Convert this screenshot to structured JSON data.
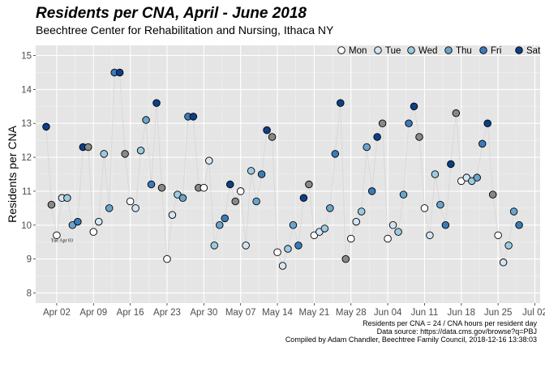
{
  "chart_data": {
    "type": "scatter",
    "title": "Residents per CNA, April - June 2018",
    "subtitle": "Beechtree Center for Rehabilitation and Nursing, Ithaca NY",
    "ylabel": "Residents per CNA",
    "xlabel": "",
    "ylim": [
      7.7,
      15.3
    ],
    "yticks": [
      8,
      9,
      10,
      11,
      12,
      13,
      14,
      15
    ],
    "xlim": [
      "2018-03-29",
      "2018-07-03"
    ],
    "xticks": [
      {
        "date": "2018-04-02",
        "label": "Apr 02"
      },
      {
        "date": "2018-04-09",
        "label": "Apr 09"
      },
      {
        "date": "2018-04-16",
        "label": "Apr 16"
      },
      {
        "date": "2018-04-23",
        "label": "Apr 23"
      },
      {
        "date": "2018-04-30",
        "label": "Apr 30"
      },
      {
        "date": "2018-05-07",
        "label": "May 07"
      },
      {
        "date": "2018-05-14",
        "label": "May 14"
      },
      {
        "date": "2018-05-21",
        "label": "May 21"
      },
      {
        "date": "2018-05-28",
        "label": "May 28"
      },
      {
        "date": "2018-06-04",
        "label": "Jun 04"
      },
      {
        "date": "2018-06-11",
        "label": "Jun 11"
      },
      {
        "date": "2018-06-18",
        "label": "Jun 18"
      },
      {
        "date": "2018-06-25",
        "label": "Jun 25"
      },
      {
        "date": "2018-07-02",
        "label": "Jul 02"
      }
    ],
    "grid": true,
    "legend_position": "top-right",
    "legend": [
      {
        "label": "Mon",
        "color": "#ffffff"
      },
      {
        "label": "Tue",
        "color": "#d3e4f3"
      },
      {
        "label": "Wed",
        "color": "#9ecae1"
      },
      {
        "label": "Thu",
        "color": "#6aa5cd"
      },
      {
        "label": "Fri",
        "color": "#3a7bb8"
      },
      {
        "label": "Sat",
        "color": "#0d3f87"
      }
    ],
    "line_color": "#d9d9d9",
    "panel_color": "#e5e5e5",
    "start_date": "2018-03-31",
    "values": [
      12.9,
      10.6,
      9.7,
      10.8,
      10.8,
      10.0,
      10.1,
      12.3,
      12.3,
      9.8,
      10.1,
      12.1,
      10.5,
      14.5,
      14.5,
      12.1,
      10.7,
      10.5,
      12.2,
      13.1,
      11.2,
      13.6,
      11.1,
      9.0,
      10.3,
      10.9,
      10.8,
      13.2,
      13.2,
      11.1,
      11.1,
      11.9,
      9.4,
      10.0,
      10.2,
      11.2,
      10.7,
      11.0,
      9.4,
      11.6,
      10.7,
      11.5,
      12.8,
      12.6,
      9.2,
      8.8,
      9.3,
      10.0,
      9.4,
      10.8,
      11.2,
      9.7,
      9.8,
      9.9,
      10.5,
      12.1,
      13.6,
      9.0,
      9.6,
      10.1,
      10.4,
      12.3,
      11.0,
      12.6,
      13.0,
      9.6,
      10.0,
      9.8,
      10.9,
      13.0,
      13.5,
      12.6,
      10.5,
      9.7,
      11.5,
      10.6,
      10.0,
      11.8,
      13.3,
      11.3,
      11.4,
      11.3,
      11.4,
      12.4,
      13.0,
      10.9,
      9.7,
      8.9,
      9.4,
      10.4,
      10.0
    ],
    "annotations": [
      {
        "text": "Tue Apr 03",
        "date": "2018-04-03",
        "value": 9.55
      }
    ],
    "caption": [
      "Residents per CNA = 24 / CNA hours per resident day",
      "Data source: https://data.cms.gov/browse?q=PBJ",
      "Compiled by Adam Chandler, Beechtree Family Council, 2018-12-16 13:38:03"
    ]
  }
}
